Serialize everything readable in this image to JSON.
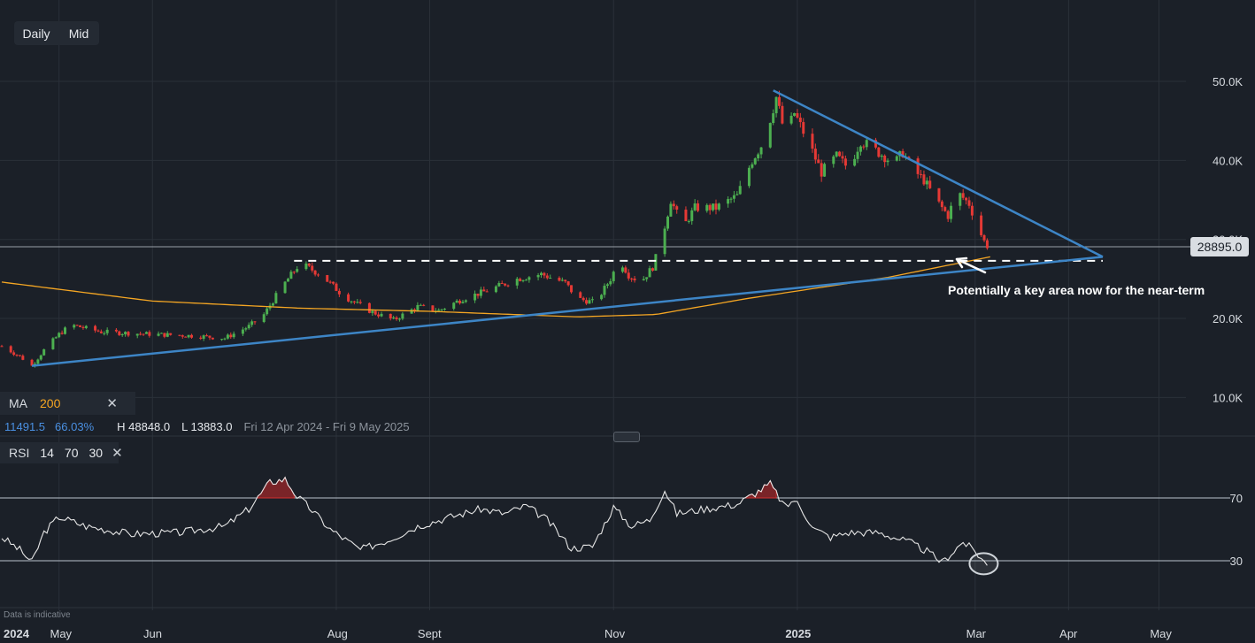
{
  "toolbar": {
    "timeframe_label": "Daily",
    "price_type_label": "Mid"
  },
  "indicators": {
    "ma": {
      "label": "MA",
      "period": "200"
    },
    "rsi": {
      "label": "RSI",
      "period": "14",
      "upper": "70",
      "lower": "30"
    },
    "close_icon": "close-icon"
  },
  "stats": {
    "change": "11491.5",
    "change_pct": "66.03%",
    "high": "H 48848.0",
    "low": "L 13883.0",
    "range": "Fri 12 Apr 2024 - Fri 9 May 2025"
  },
  "current_price": "28895.0",
  "annotation": "Potentially a key area now for the near-term",
  "disclaimer": "Data is indicative",
  "colors": {
    "background": "#1b2028",
    "up_candle": "#4caf50",
    "down_candle": "#e53935",
    "moving_average": "#f5a623",
    "trendline": "#3d85c6",
    "rsi_line": "#e6e6e6"
  },
  "chart_data": {
    "type": "candlestick",
    "y_axis_ticks": [
      "50.0K",
      "40.0K",
      "30.0K",
      "20.0K",
      "10.0K"
    ],
    "y_axis_values": [
      50000,
      40000,
      30000,
      20000,
      10000
    ],
    "x_axis_ticks": [
      "2024",
      "May",
      "Jun",
      "Aug",
      "Sept",
      "Nov",
      "2025",
      "Mar",
      "Apr",
      "May"
    ],
    "x_axis_dates": [
      "2024-04-12",
      "2024-05-01",
      "2024-06-01",
      "2024-08-01",
      "2024-09-01",
      "2024-11-01",
      "2025-01-01",
      "2025-03-01",
      "2025-04-01",
      "2025-05-01"
    ],
    "y_range": [
      4000,
      53000
    ],
    "price_anchors": [
      [
        "2024-04-12",
        16500
      ],
      [
        "2024-04-18",
        15200
      ],
      [
        "2024-04-22",
        14000
      ],
      [
        "2024-04-26",
        16000
      ],
      [
        "2024-05-01",
        18000
      ],
      [
        "2024-05-05",
        19200
      ],
      [
        "2024-05-15",
        18300
      ],
      [
        "2024-06-01",
        18000
      ],
      [
        "2024-06-15",
        17800
      ],
      [
        "2024-06-25",
        17500
      ],
      [
        "2024-07-03",
        19000
      ],
      [
        "2024-07-08",
        20500
      ],
      [
        "2024-07-14",
        24000
      ],
      [
        "2024-07-20",
        27000
      ],
      [
        "2024-07-27",
        25500
      ],
      [
        "2024-08-03",
        23000
      ],
      [
        "2024-08-08",
        21800
      ],
      [
        "2024-08-13",
        20800
      ],
      [
        "2024-08-20",
        19800
      ],
      [
        "2024-08-28",
        21500
      ],
      [
        "2024-09-04",
        21000
      ],
      [
        "2024-09-12",
        22500
      ],
      [
        "2024-09-20",
        23500
      ],
      [
        "2024-09-30",
        25000
      ],
      [
        "2024-10-08",
        25600
      ],
      [
        "2024-10-16",
        24500
      ],
      [
        "2024-10-20",
        22500
      ],
      [
        "2024-10-26",
        22000
      ],
      [
        "2024-10-31",
        25000
      ],
      [
        "2024-11-03",
        27500
      ],
      [
        "2024-11-06",
        25500
      ],
      [
        "2024-11-10",
        24600
      ],
      [
        "2024-11-14",
        26500
      ],
      [
        "2024-11-17",
        30000
      ],
      [
        "2024-11-20",
        35000
      ],
      [
        "2024-11-24",
        31500
      ],
      [
        "2024-11-28",
        34000
      ],
      [
        "2024-12-05",
        34000
      ],
      [
        "2024-12-12",
        35500
      ],
      [
        "2024-12-17",
        40000
      ],
      [
        "2024-12-21",
        42500
      ],
      [
        "2024-12-25",
        48000
      ],
      [
        "2024-12-28",
        43000
      ],
      [
        "2024-12-31",
        46000
      ],
      [
        "2025-01-05",
        42000
      ],
      [
        "2025-01-09",
        38500
      ],
      [
        "2025-01-14",
        40500
      ],
      [
        "2025-01-18",
        39000
      ],
      [
        "2025-01-22",
        42500
      ],
      [
        "2025-01-26",
        41500
      ],
      [
        "2025-01-30",
        40500
      ],
      [
        "2025-02-02",
        39500
      ],
      [
        "2025-02-05",
        41000
      ],
      [
        "2025-02-08",
        39000
      ],
      [
        "2025-02-12",
        37500
      ],
      [
        "2025-02-16",
        35000
      ],
      [
        "2025-02-20",
        33000
      ],
      [
        "2025-02-23",
        36000
      ],
      [
        "2025-02-27",
        34500
      ],
      [
        "2025-03-02",
        31500
      ],
      [
        "2025-03-05",
        28895
      ]
    ],
    "ma200_anchors": [
      [
        "2024-04-12",
        24600
      ],
      [
        "2024-06-01",
        22200
      ],
      [
        "2024-07-20",
        21300
      ],
      [
        "2024-09-01",
        20900
      ],
      [
        "2024-10-20",
        20200
      ],
      [
        "2024-11-15",
        20500
      ],
      [
        "2024-12-15",
        22500
      ],
      [
        "2025-01-31",
        25200
      ],
      [
        "2025-03-06",
        27800
      ]
    ],
    "support_line_days": [
      [
        "2024-04-22",
        14000
      ],
      [
        "2025-04-14",
        27800
      ]
    ],
    "resistance_line_days": [
      [
        "2024-12-24",
        48848
      ],
      [
        "2025-04-14",
        27800
      ]
    ],
    "horizontal_level": 27300,
    "rsi_levels": [
      70,
      30
    ],
    "rsi_anchors": [
      [
        "2024-04-12",
        45
      ],
      [
        "2024-04-18",
        37
      ],
      [
        "2024-04-22",
        29
      ],
      [
        "2024-04-26",
        48
      ],
      [
        "2024-05-01",
        58
      ],
      [
        "2024-05-10",
        52
      ],
      [
        "2024-05-25",
        47
      ],
      [
        "2024-06-10",
        48
      ],
      [
        "2024-06-25",
        52
      ],
      [
        "2024-07-03",
        63
      ],
      [
        "2024-07-10",
        80
      ],
      [
        "2024-07-15",
        82
      ],
      [
        "2024-07-19",
        71
      ],
      [
        "2024-07-23",
        64
      ],
      [
        "2024-07-30",
        50
      ],
      [
        "2024-08-09",
        37
      ],
      [
        "2024-08-18",
        43
      ],
      [
        "2024-08-28",
        52
      ],
      [
        "2024-09-08",
        58
      ],
      [
        "2024-09-18",
        63
      ],
      [
        "2024-09-26",
        60
      ],
      [
        "2024-10-03",
        65
      ],
      [
        "2024-10-10",
        56
      ],
      [
        "2024-10-18",
        38
      ],
      [
        "2024-10-25",
        39
      ],
      [
        "2024-11-01",
        64
      ],
      [
        "2024-11-07",
        52
      ],
      [
        "2024-11-13",
        56
      ],
      [
        "2024-11-18",
        75
      ],
      [
        "2024-11-22",
        60
      ],
      [
        "2024-12-01",
        63
      ],
      [
        "2024-12-12",
        66
      ],
      [
        "2024-12-18",
        73
      ],
      [
        "2024-12-23",
        79
      ],
      [
        "2024-12-28",
        64
      ],
      [
        "2024-12-31",
        69
      ],
      [
        "2025-01-07",
        50
      ],
      [
        "2025-01-12",
        45
      ],
      [
        "2025-01-18",
        48
      ],
      [
        "2025-01-28",
        48
      ],
      [
        "2025-02-07",
        42
      ],
      [
        "2025-02-13",
        36
      ],
      [
        "2025-02-18",
        29
      ],
      [
        "2025-02-25",
        42
      ],
      [
        "2025-03-01",
        36
      ],
      [
        "2025-03-05",
        27
      ]
    ]
  }
}
